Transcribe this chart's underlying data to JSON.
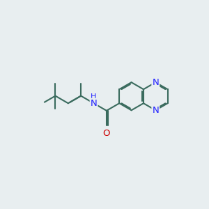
{
  "background_color": "#e8eef0",
  "bond_color": "#3a6b5e",
  "N_color": "#2020ff",
  "O_color": "#cc0000",
  "bond_width": 1.5,
  "font_size": 9.5,
  "fig_size": [
    3.0,
    3.0
  ],
  "dpi": 100,
  "xlim": [
    0,
    10
  ],
  "ylim": [
    0,
    10
  ]
}
